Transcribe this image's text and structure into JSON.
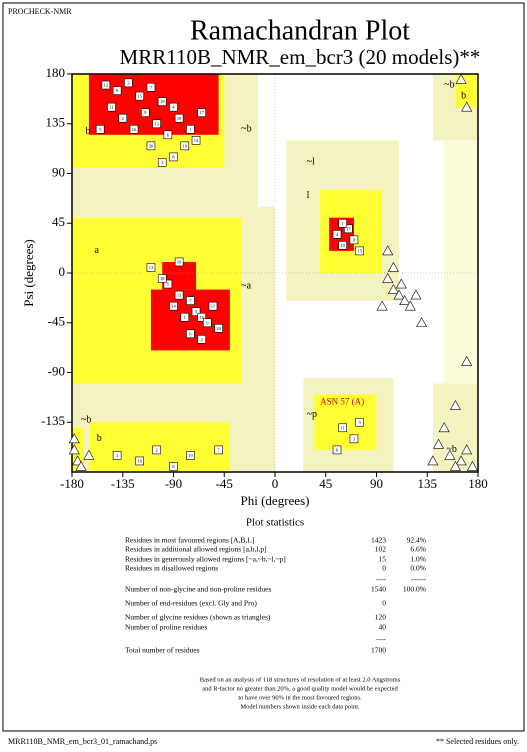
{
  "header": {
    "program": "PROCHECK-NMR"
  },
  "chart_data": {
    "type": "scatter",
    "title": "Ramachandran Plot",
    "subtitle": "MRR110B_NMR_em_bcr3 (20 models)**",
    "x_label": "Phi (degrees)",
    "y_label": "Psi (degrees)",
    "xlim": [
      -180,
      180
    ],
    "xticks": [
      -180,
      -135,
      -90,
      -45,
      0,
      45,
      90,
      135,
      180
    ],
    "ylim": [
      -180,
      180
    ],
    "yticks": [
      180,
      135,
      90,
      45,
      0,
      -45,
      -90,
      -135
    ],
    "grid": false,
    "region_labels": [
      "b",
      "a",
      "~b",
      "~a",
      "~l",
      "l",
      "~p",
      "~b",
      "b",
      "~b",
      "b",
      "~b"
    ],
    "annotations": [
      "ASN 57 (A)"
    ],
    "series": [
      {
        "name": "residues",
        "marker": "square",
        "color": "#ffffff",
        "x": [
          -150,
          -140,
          -130,
          -120,
          -110,
          -100,
          -90,
          -145,
          -135,
          -125,
          -115,
          -105,
          -95,
          -85,
          -75,
          -80,
          -70,
          -155,
          -110,
          -65,
          -100,
          -90,
          -95,
          -85,
          -75,
          -70,
          -65,
          -60,
          -80,
          -90,
          -55,
          -50,
          -100,
          -75,
          -65,
          -110,
          -85,
          55,
          60,
          65,
          70,
          75,
          60,
          -140,
          -120,
          -105,
          -90,
          -75,
          -50,
          60,
          70,
          75,
          55
        ],
        "values": [
          170,
          165,
          172,
          160,
          168,
          155,
          150,
          150,
          140,
          130,
          145,
          135,
          125,
          140,
          130,
          115,
          120,
          130,
          115,
          145,
          100,
          105,
          -10,
          -20,
          -25,
          -35,
          -40,
          -45,
          -40,
          -30,
          -30,
          -50,
          -5,
          -55,
          -60,
          5,
          10,
          35,
          25,
          40,
          30,
          20,
          45,
          -165,
          -170,
          -160,
          -175,
          -165,
          -160,
          -140,
          -150,
          -135,
          -160
        ],
        "point_labels": [
          "12",
          "8",
          "3",
          "15",
          "7",
          "19",
          "4",
          "11",
          "2",
          "16",
          "9",
          "13",
          "6",
          "18",
          "1",
          "10",
          "14",
          "5",
          "20",
          "17",
          "3",
          "8",
          "5",
          "12",
          "7",
          "3",
          "16",
          "9",
          "1",
          "14",
          "11",
          "20",
          "18",
          "6",
          "2",
          "13",
          "19",
          "4",
          "10",
          "17",
          "8",
          "15",
          "1",
          "1",
          "16",
          "2",
          "8",
          "19",
          "7",
          "11",
          "3",
          "9",
          "6"
        ]
      },
      {
        "name": "glycine",
        "marker": "triangle",
        "color": "#ffffff",
        "x": [
          100,
          105,
          110,
          115,
          120,
          112,
          125,
          100,
          95,
          105,
          145,
          155,
          165,
          170,
          160,
          175,
          140,
          -178,
          -175,
          -172,
          -165,
          -178,
          165,
          170,
          130,
          150,
          160,
          170
        ],
        "values": [
          -5,
          -15,
          -20,
          -25,
          -30,
          -10,
          -20,
          20,
          -30,
          5,
          -155,
          -165,
          -170,
          -160,
          -175,
          -175,
          -170,
          -160,
          -170,
          -175,
          -165,
          -150,
          175,
          150,
          -45,
          -140,
          -120,
          -80
        ]
      }
    ]
  },
  "statistics": {
    "title": "Plot statistics",
    "rows": [
      [
        "Residues in most favoured regions  [A,B,L]",
        "1423",
        "92.4%"
      ],
      [
        "Residues in additional allowed regions  [a,b,l,p]",
        "102",
        "6.6%"
      ],
      [
        "Residues in generously allowed regions  [~a,~b,~l,~p]",
        "15",
        "1.0%"
      ],
      [
        "Residues in disallowed regions",
        "0",
        "0.0%"
      ],
      [
        "",
        "----",
        "------"
      ],
      [
        "Number of non-glycine and non-proline residues",
        "1540",
        "100.0%"
      ],
      [
        "Number of end-residues (excl. Gly and Pro)",
        "0",
        ""
      ],
      [
        "Number of glycine residues (shown as triangles)",
        "120",
        ""
      ],
      [
        "Number of proline residues",
        "40",
        ""
      ],
      [
        "",
        "----",
        ""
      ],
      [
        "Total number of residues",
        "1700",
        ""
      ]
    ],
    "notes": [
      "Based on an analysis of 118 structures of resolution of at least 2.0 Angstroms",
      "and R-factor no greater than 20%, a good quality model would be expected",
      "to have over 90% in the most favoured regions.",
      "Model numbers shown inside each data point."
    ]
  },
  "footer": {
    "file": "MRR110B_NMR_em_bcr3_01_ramachand.ps",
    "note": "** Selected residues only."
  }
}
